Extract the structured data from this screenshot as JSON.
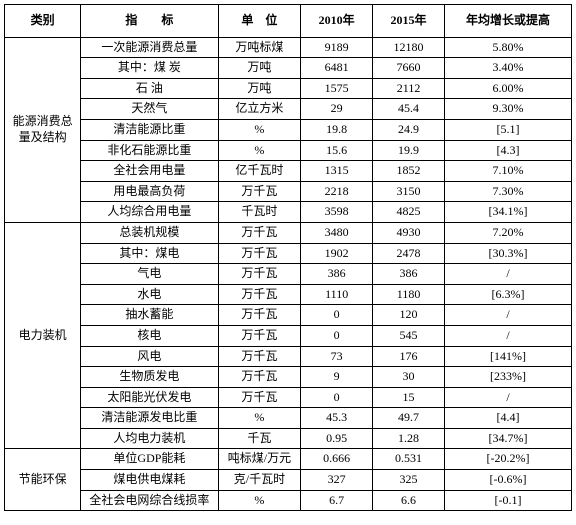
{
  "headers": {
    "category": "类别",
    "indicator": "指　　标",
    "unit": "单　位",
    "y2010": "2010年",
    "y2015": "2015年",
    "growth": "年均增长或提高"
  },
  "sections": [
    {
      "category": "能源消费总量及结构",
      "rows": [
        {
          "indicator": "一次能源消费总量",
          "unit": "万吨标煤",
          "y2010": "9189",
          "y2015": "12180",
          "growth": "5.80%"
        },
        {
          "indicator": "其中：煤 炭",
          "unit": "万吨",
          "y2010": "6481",
          "y2015": "7660",
          "growth": "3.40%"
        },
        {
          "indicator": "石 油",
          "unit": "万吨",
          "y2010": "1575",
          "y2015": "2112",
          "growth": "6.00%"
        },
        {
          "indicator": "天然气",
          "unit": "亿立方米",
          "y2010": "29",
          "y2015": "45.4",
          "growth": "9.30%"
        },
        {
          "indicator": "清洁能源比重",
          "unit": "%",
          "y2010": "19.8",
          "y2015": "24.9",
          "growth": "[5.1]"
        },
        {
          "indicator": "非化石能源比重",
          "unit": "%",
          "y2010": "15.6",
          "y2015": "19.9",
          "growth": "[4.3]"
        },
        {
          "indicator": "全社会用电量",
          "unit": "亿千瓦时",
          "y2010": "1315",
          "y2015": "1852",
          "growth": "7.10%"
        },
        {
          "indicator": "用电最高负荷",
          "unit": "万千瓦",
          "y2010": "2218",
          "y2015": "3150",
          "growth": "7.30%"
        },
        {
          "indicator": "人均综合用电量",
          "unit": "千瓦时",
          "y2010": "3598",
          "y2015": "4825",
          "growth": "[34.1%]"
        }
      ]
    },
    {
      "category": "电力装机",
      "rows": [
        {
          "indicator": "总装机规模",
          "unit": "万千瓦",
          "y2010": "3480",
          "y2015": "4930",
          "growth": "7.20%"
        },
        {
          "indicator": "其中：煤电",
          "unit": "万千瓦",
          "y2010": "1902",
          "y2015": "2478",
          "growth": "[30.3%]"
        },
        {
          "indicator": "气电",
          "unit": "万千瓦",
          "y2010": "386",
          "y2015": "386",
          "growth": "/"
        },
        {
          "indicator": "水电",
          "unit": "万千瓦",
          "y2010": "1110",
          "y2015": "1180",
          "growth": "[6.3%]"
        },
        {
          "indicator": "抽水蓄能",
          "unit": "万千瓦",
          "y2010": "0",
          "y2015": "120",
          "growth": "/"
        },
        {
          "indicator": "核电",
          "unit": "万千瓦",
          "y2010": "0",
          "y2015": "545",
          "growth": "/"
        },
        {
          "indicator": "风电",
          "unit": "万千瓦",
          "y2010": "73",
          "y2015": "176",
          "growth": "[141%]"
        },
        {
          "indicator": "生物质发电",
          "unit": "万千瓦",
          "y2010": "9",
          "y2015": "30",
          "growth": "[233%]"
        },
        {
          "indicator": "太阳能光伏发电",
          "unit": "万千瓦",
          "y2010": "0",
          "y2015": "15",
          "growth": "/"
        },
        {
          "indicator": "清洁能源发电比重",
          "unit": "%",
          "y2010": "45.3",
          "y2015": "49.7",
          "growth": "[4.4]"
        },
        {
          "indicator": "人均电力装机",
          "unit": "千瓦",
          "y2010": "0.95",
          "y2015": "1.28",
          "growth": "[34.7%]"
        }
      ]
    },
    {
      "category": "节能环保",
      "rows": [
        {
          "indicator": "单位GDP能耗",
          "unit": "吨标煤/万元",
          "y2010": "0.666",
          "y2015": "0.531",
          "growth": "[-20.2%]"
        },
        {
          "indicator": "煤电供电煤耗",
          "unit": "克/千瓦时",
          "y2010": "327",
          "y2015": "325",
          "growth": "[-0.6%]"
        },
        {
          "indicator": "全社会电网综合线损率",
          "unit": "%",
          "y2010": "6.7",
          "y2015": "6.6",
          "growth": "[-0.1]"
        }
      ]
    }
  ],
  "colors": {
    "background": "#ffffff",
    "border": "#000000",
    "text": "#000000"
  },
  "font": {
    "family": "SimSun",
    "size_body": 12,
    "size_header": 12
  }
}
